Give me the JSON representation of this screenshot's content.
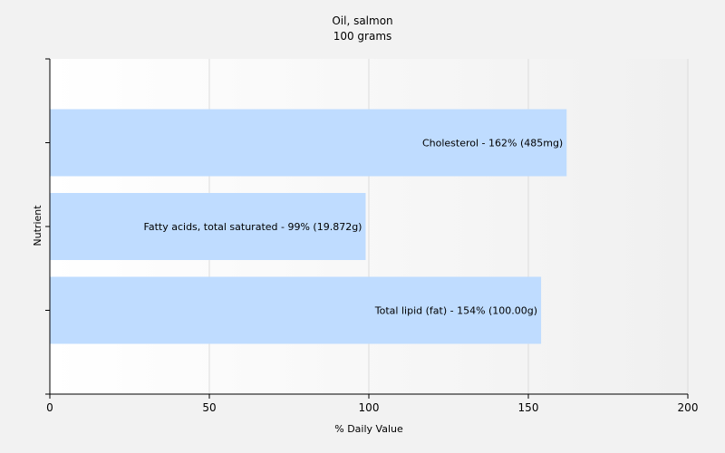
{
  "chart_data": {
    "type": "bar",
    "orientation": "horizontal",
    "title": "Oil, salmon",
    "subtitle": "100 grams",
    "xlabel": "% Daily Value",
    "ylabel": "Nutrient",
    "xlim": [
      0,
      200
    ],
    "xticks": [
      0,
      50,
      100,
      150,
      200
    ],
    "grid": true,
    "categories": [
      "Cholesterol",
      "Fatty acids, total saturated",
      "Total lipid (fat)"
    ],
    "values": [
      162,
      99,
      154
    ],
    "data_labels": [
      "Cholesterol - 162% (485mg)",
      "Fatty acids, total saturated - 99% (19.872g)",
      "Total lipid (fat) - 154% (100.00g)"
    ],
    "colors": {
      "bar": "#bfdcff",
      "grid": "#dcdcdc",
      "axis": "#000000"
    }
  }
}
